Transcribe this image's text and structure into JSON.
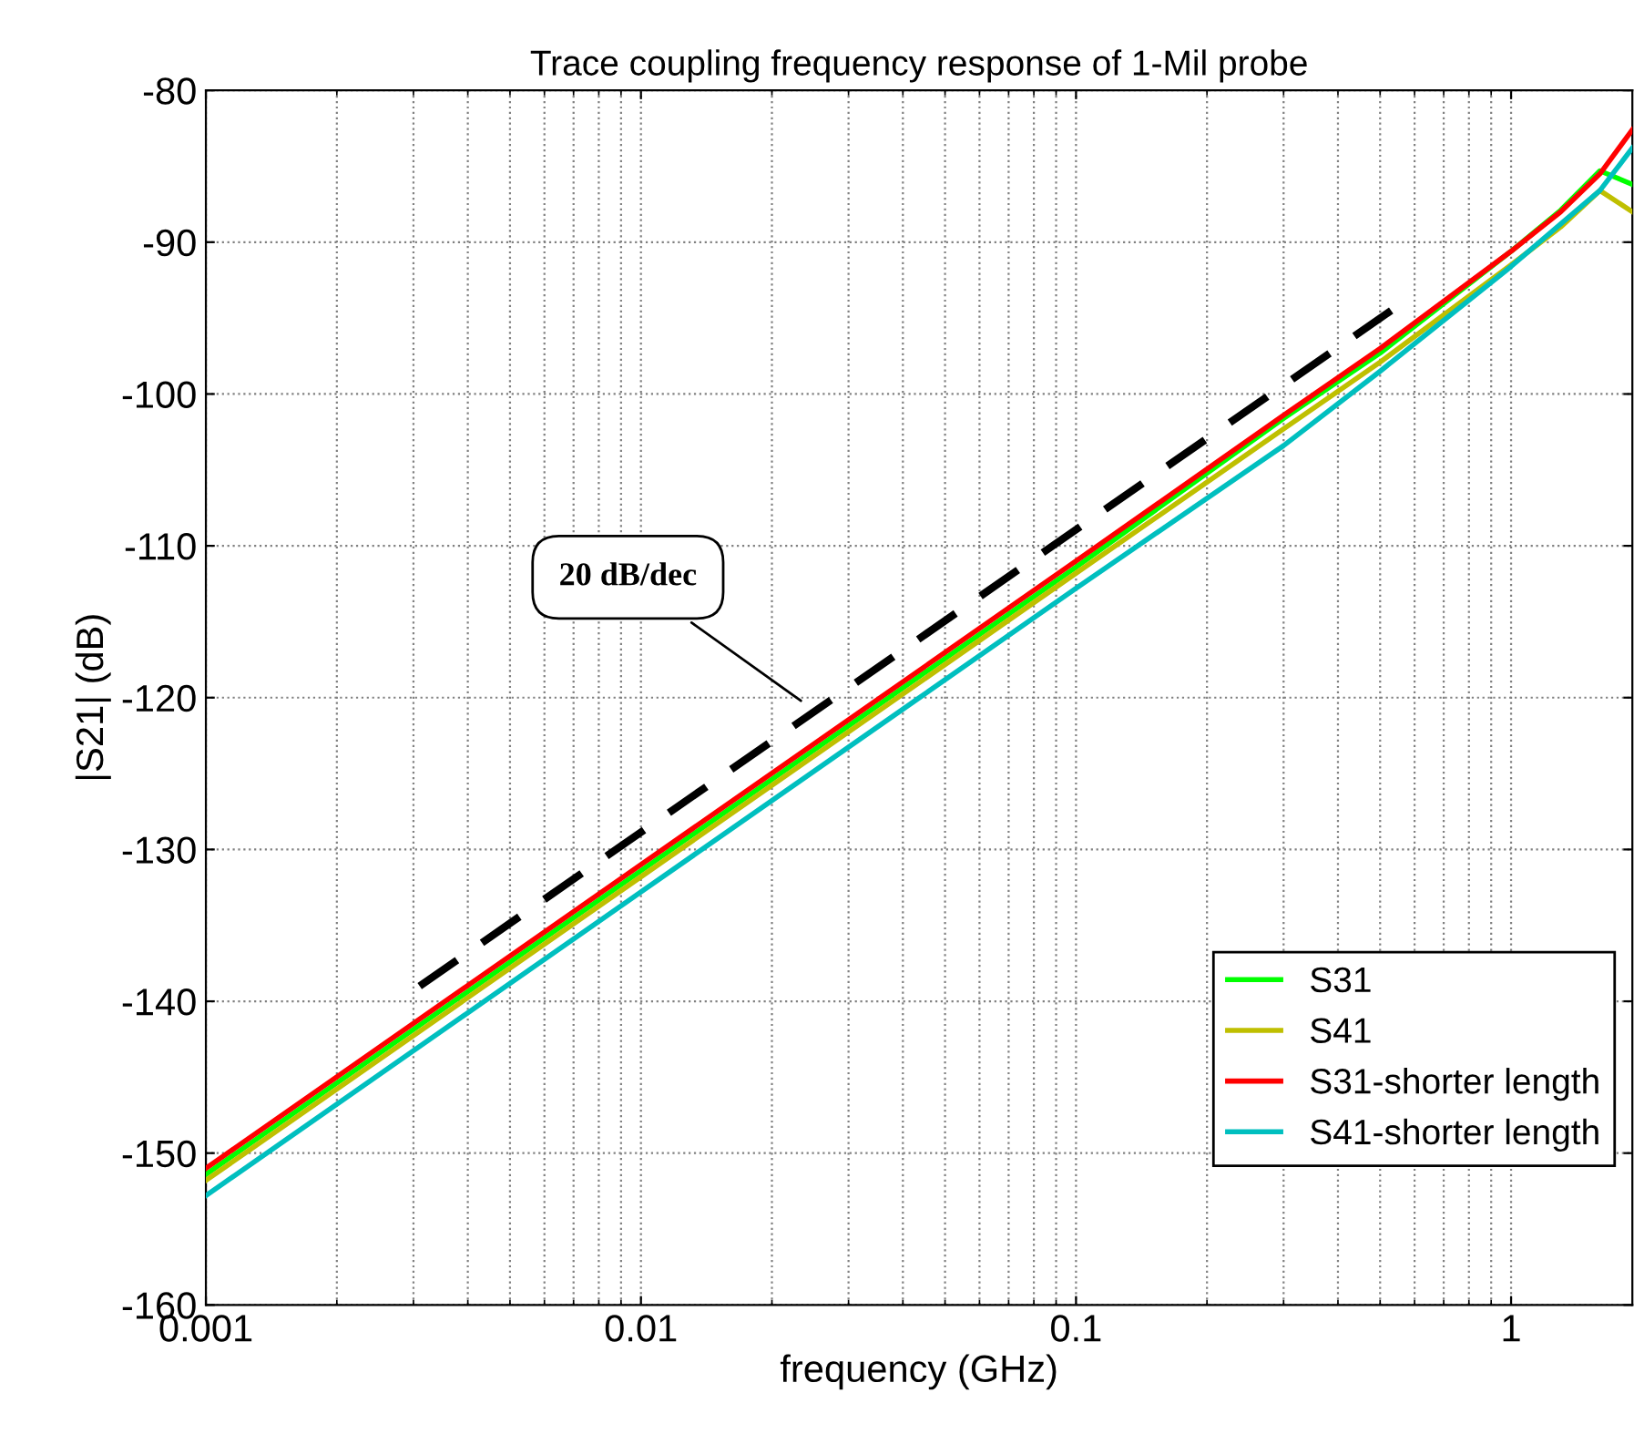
{
  "chart_data": {
    "type": "line",
    "title": "Trace coupling frequency response of 1-Mil probe",
    "xlabel": "frequency (GHz)",
    "ylabel": "|S21| (dB)",
    "log": "x",
    "grid": true,
    "legend": "bottom right",
    "line_style": "solid",
    "marker": "none",
    "x": [
      0.001,
      0.01,
      0.1,
      0.3,
      0.5,
      1,
      1.3,
      1.6,
      1.9
    ],
    "series": [
      {
        "name": "S31",
        "color": "#00ff00",
        "values": [
          -151.4,
          -131.4,
          -111.4,
          -101.6,
          -97.3,
          -90.6,
          -87.9,
          -85.3,
          -86.2
        ]
      },
      {
        "name": "S41",
        "color": "#bfbf00",
        "values": [
          -151.8,
          -131.8,
          -111.8,
          -102.3,
          -97.9,
          -91.5,
          -89.0,
          -86.6,
          -88.0
        ]
      },
      {
        "name": "S31-shorter length",
        "color": "#ff0000",
        "values": [
          -151.0,
          -131.0,
          -111.0,
          -101.4,
          -97.0,
          -90.6,
          -88.0,
          -85.5,
          -82.6
        ]
      },
      {
        "name": "S41-shorter length",
        "color": "#00bfbf",
        "values": [
          -152.8,
          -132.8,
          -112.8,
          -103.4,
          -98.5,
          -91.6,
          -88.8,
          -86.6,
          -83.8
        ]
      },
      {
        "type": "line",
        "line_style": "dashed",
        "color": "#000000",
        "x": [
          0.0031,
          0.53
        ],
        "values": [
          -139,
          -94.5
        ]
      }
    ],
    "annotations": [
      "20 dB/dec"
    ],
    "xlim": [
      0.001,
      1.9
    ],
    "ylim": [
      -160,
      -80
    ],
    "xticks": [
      {
        "value": 0.001,
        "label": "0.001"
      },
      {
        "value": 0.01,
        "label": "0.01"
      },
      {
        "value": 0.1,
        "label": "0.1"
      },
      {
        "value": 1,
        "label": "1"
      }
    ],
    "yticks": [
      -160,
      -150,
      -140,
      -130,
      -120,
      -110,
      -100,
      -90,
      -80
    ]
  }
}
